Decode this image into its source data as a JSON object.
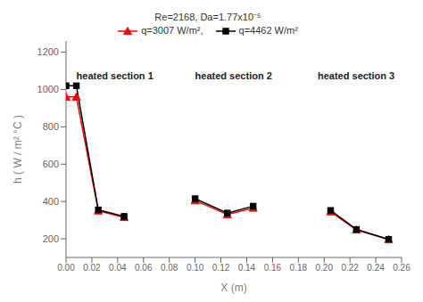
{
  "chart_data": {
    "type": "line",
    "x": [
      0.0,
      0.008,
      0.025,
      0.045,
      null,
      0.1,
      0.125,
      0.145,
      null,
      0.205,
      0.225,
      0.25
    ],
    "series": [
      {
        "name": "q=3007 W/m²,",
        "color": "red",
        "marker": "triangle",
        "values": [
          960,
          960,
          350,
          315,
          null,
          405,
          330,
          365,
          null,
          345,
          248,
          197
        ]
      },
      {
        "name": "q=4462 W/m²",
        "color": "black",
        "marker": "square",
        "values": [
          1020,
          1020,
          355,
          320,
          null,
          415,
          338,
          375,
          null,
          352,
          250,
          197
        ]
      }
    ],
    "xlabel": "X (m)",
    "ylabel": "h ( W / m² °C )",
    "legend_title": "Re=2168, Da=1.77x10⁻⁵",
    "annotations": [
      {
        "text": "heated section 1",
        "x": 0.008,
        "y": 1020
      },
      {
        "text": "heated section 2",
        "x": 0.1,
        "y": 1020
      },
      {
        "text": "heated section 3",
        "x": 0.195,
        "y": 1020
      }
    ],
    "xlim": [
      0,
      0.26
    ],
    "ylim": [
      100,
      1260
    ],
    "xticks": [
      {
        "value": 0.0,
        "label": "0.00"
      },
      {
        "value": 0.02,
        "label": "0.02"
      },
      {
        "value": 0.04,
        "label": "0.04"
      },
      {
        "value": 0.06,
        "label": "0.06"
      },
      {
        "value": 0.08,
        "label": "0.08"
      },
      {
        "value": 0.1,
        "label": "0.10"
      },
      {
        "value": 0.12,
        "label": "0.12"
      },
      {
        "value": 0.14,
        "label": "0.14"
      },
      {
        "value": 0.16,
        "label": "0.16"
      },
      {
        "value": 0.18,
        "label": "0.18"
      },
      {
        "value": 0.2,
        "label": "0.20"
      },
      {
        "value": 0.22,
        "label": "0.22"
      },
      {
        "value": 0.24,
        "label": "0.24"
      },
      {
        "value": 0.26,
        "label": "0.26"
      }
    ],
    "yticks": [
      200,
      400,
      600,
      800,
      1000,
      1200
    ],
    "grid": false,
    "legend": "top"
  }
}
